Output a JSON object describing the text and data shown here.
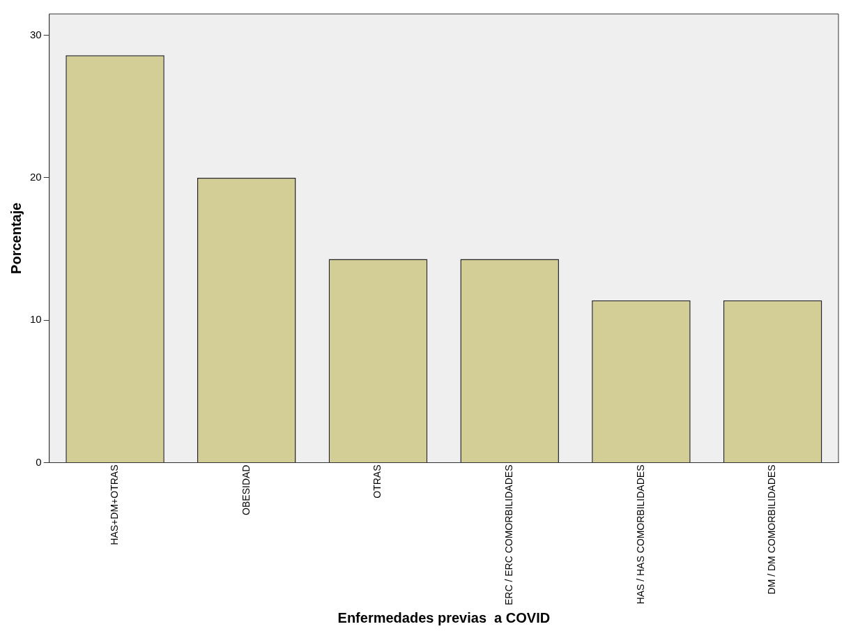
{
  "chart_data": {
    "type": "bar",
    "xlabel": "Enfermedades previas  a COVID",
    "ylabel": "Porcentaje",
    "categories": [
      "HAS+DM+OTRAS",
      "OBESIDAD",
      "OTRAS",
      "ERC / ERC COMORBILIDADES",
      "HAS / HAS COMORBILIDADES",
      "DM / DM COMORBILIDADES"
    ],
    "values": [
      28.6,
      20.0,
      14.3,
      14.3,
      11.4,
      11.4
    ],
    "color": "#d3cd96",
    "ylim": [
      0,
      31.5
    ],
    "yticks": [
      0,
      10,
      20,
      30
    ],
    "grid": false,
    "legend": false
  }
}
